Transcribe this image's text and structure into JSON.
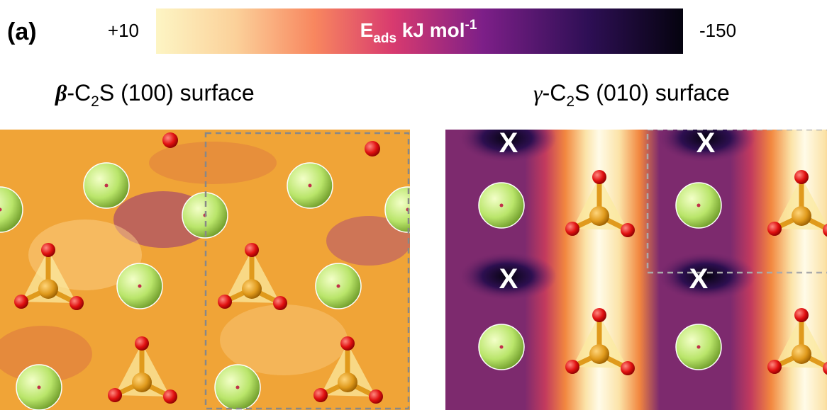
{
  "figure": {
    "panel_label": "(a)",
    "colorbar": {
      "left_label": "+10",
      "right_label": "-150",
      "symbol": "E",
      "symbol_sub": "ads",
      "unit": " kJ mol",
      "unit_sup": "-1"
    },
    "panels": [
      {
        "greek": "β",
        "formula_a": "-C",
        "formula_sub": "2",
        "formula_b": "S (100) surface"
      },
      {
        "greek": "γ",
        "formula_a": "-C",
        "formula_sub": "2",
        "formula_b": "S (010) surface",
        "markers": [
          "X",
          "X",
          "X",
          "X"
        ]
      }
    ]
  }
}
